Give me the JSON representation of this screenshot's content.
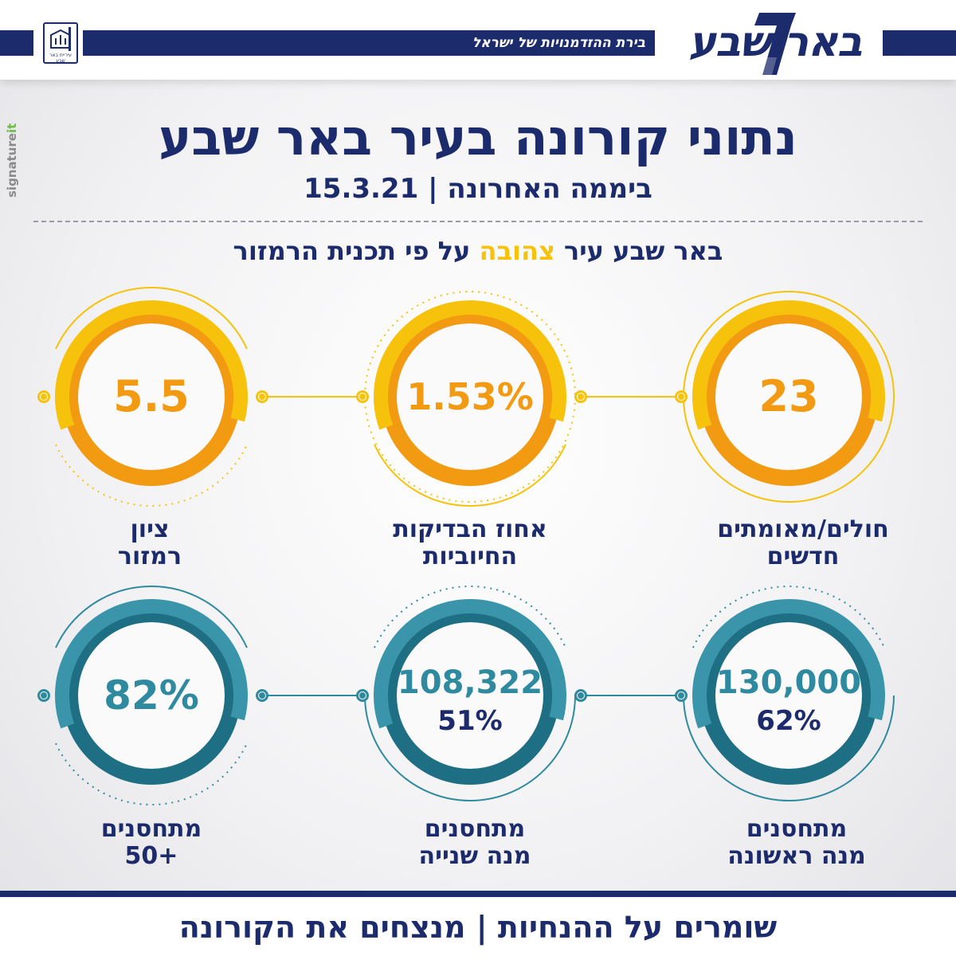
{
  "header": {
    "tagline": "בירת ההזדמנויות של ישראל",
    "logo_text": "באר שבע",
    "emblem_label": "עיריית באר שבע"
  },
  "credit": {
    "part1": "signature",
    "part2": "it"
  },
  "title": "נתוני קורונה בעיר באר שבע",
  "subtitle": "ביממה האחרונה | 15.3.21",
  "status": {
    "before": "באר שבע עיר ",
    "highlight": "צהובה",
    "after": " על פי תכנית הרמזור"
  },
  "stats": [
    {
      "value": "23",
      "secondary": "",
      "label_line1": "חולים/מאומתים",
      "label_line2": "חדשים"
    },
    {
      "value": "1.53%",
      "secondary": "",
      "label_line1": "אחוז הבדיקות",
      "label_line2": "החיוביות"
    },
    {
      "value": "5.5",
      "secondary": "",
      "label_line1": "ציון",
      "label_line2": "רמזור"
    },
    {
      "value": "130,000",
      "secondary": "62%",
      "label_line1": "מתחסנים",
      "label_line2": "מנה ראשונה"
    },
    {
      "value": "108,322",
      "secondary": "51%",
      "label_line1": "מתחסנים",
      "label_line2": "מנה שנייה"
    },
    {
      "value": "82%",
      "secondary": "",
      "label_line1": "מתחסנים",
      "label_line2": "50+"
    }
  ],
  "footer": "שומרים על ההנחיות | מנצחים את הקורונה",
  "colors": {
    "navy": "#1c2b6b",
    "yellow": "#f6c20c",
    "orange": "#f29a12",
    "teal": "#2f8aa0"
  }
}
